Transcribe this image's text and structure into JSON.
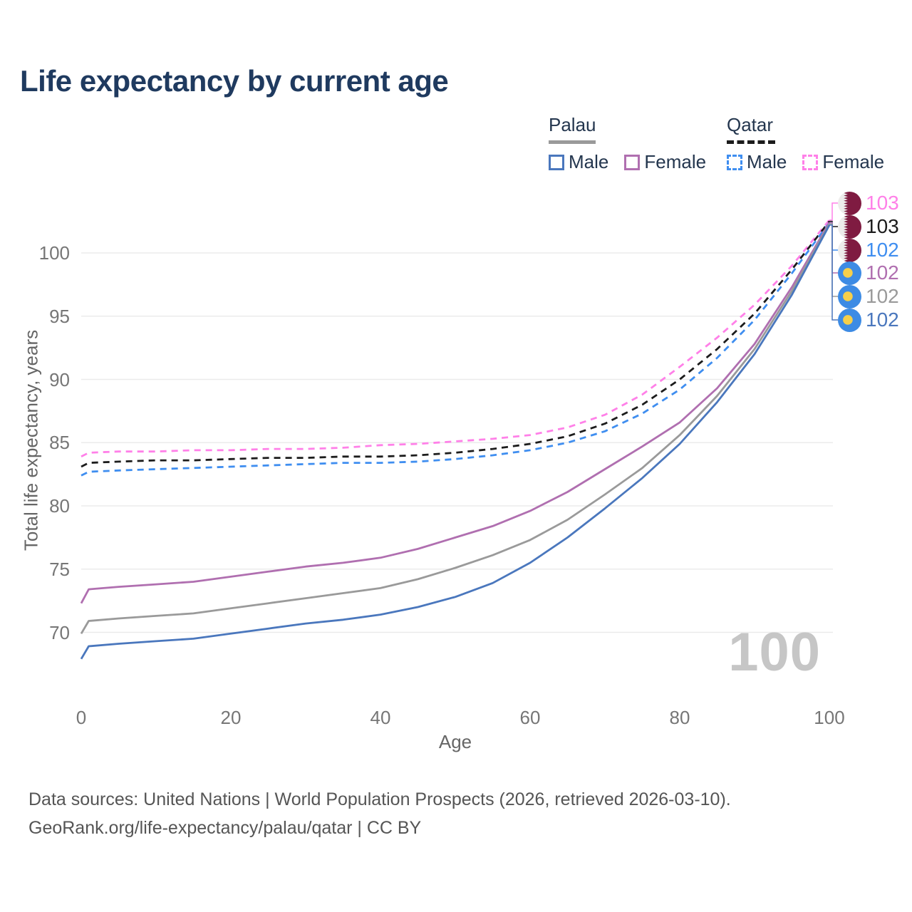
{
  "header": {
    "title": "Life expectancy by current age"
  },
  "legend": {
    "groups": [
      {
        "label": "Palau",
        "line_style": "solid",
        "underline_color": "#9a9a9a",
        "items": [
          {
            "label": "Male",
            "color": "#4a77bd"
          },
          {
            "label": "Female",
            "color": "#b06fb0"
          }
        ]
      },
      {
        "label": "Qatar",
        "line_style": "dashed",
        "underline_color": "#1c1c1c",
        "items": [
          {
            "label": "Male",
            "color": "#3f8ef0"
          },
          {
            "label": "Female",
            "color": "#ff80e8"
          }
        ]
      }
    ]
  },
  "chart_data": {
    "type": "line",
    "title": "Life expectancy by current age",
    "xlabel": "Age",
    "ylabel": "Total life expectancy, years",
    "xlim": [
      0,
      100
    ],
    "ylim": [
      67,
      104
    ],
    "xticks": [
      0,
      20,
      40,
      60,
      80,
      100
    ],
    "yticks": [
      70,
      75,
      80,
      85,
      90,
      95,
      100
    ],
    "grid": "horizontal",
    "legend_position": "top-right",
    "x": [
      0,
      1,
      5,
      10,
      15,
      20,
      25,
      30,
      35,
      40,
      45,
      50,
      55,
      60,
      65,
      70,
      75,
      80,
      85,
      90,
      95,
      100
    ],
    "series": [
      {
        "id": "qatar-female",
        "name": "Qatar Female",
        "country": "Qatar",
        "sex": "Female",
        "color": "#ff80e8",
        "dash": "dashed",
        "flag": "qatar",
        "end_label": "103",
        "values": [
          83.9,
          84.2,
          84.3,
          84.3,
          84.4,
          84.4,
          84.5,
          84.5,
          84.6,
          84.8,
          84.9,
          85.1,
          85.3,
          85.6,
          86.2,
          87.2,
          88.8,
          91.0,
          93.3,
          95.9,
          99.0,
          102.6
        ]
      },
      {
        "id": "qatar-both",
        "name": "Qatar Both sexes",
        "country": "Qatar",
        "sex": "Both",
        "color": "#1c1c1c",
        "dash": "dashed",
        "flag": "qatar",
        "end_label": "103",
        "values": [
          83.1,
          83.4,
          83.5,
          83.6,
          83.6,
          83.7,
          83.8,
          83.8,
          83.9,
          83.9,
          84.0,
          84.2,
          84.5,
          84.9,
          85.5,
          86.5,
          88.0,
          90.0,
          92.4,
          95.2,
          98.7,
          102.5
        ]
      },
      {
        "id": "qatar-male",
        "name": "Qatar Male",
        "country": "Qatar",
        "sex": "Male",
        "color": "#3f8ef0",
        "dash": "dashed",
        "flag": "qatar",
        "end_label": "102",
        "values": [
          82.4,
          82.7,
          82.8,
          82.9,
          83.0,
          83.1,
          83.2,
          83.3,
          83.4,
          83.4,
          83.5,
          83.7,
          84.0,
          84.4,
          85.0,
          85.9,
          87.3,
          89.2,
          91.7,
          94.7,
          98.4,
          102.4
        ]
      },
      {
        "id": "palau-female",
        "name": "Palau Female",
        "country": "Palau",
        "sex": "Female",
        "color": "#b06fb0",
        "dash": "solid",
        "flag": "palau",
        "end_label": "102",
        "values": [
          72.3,
          73.4,
          73.6,
          73.8,
          74.0,
          74.4,
          74.8,
          75.2,
          75.5,
          75.9,
          76.6,
          77.5,
          78.4,
          79.6,
          81.1,
          82.9,
          84.7,
          86.6,
          89.3,
          92.8,
          97.3,
          102.4
        ]
      },
      {
        "id": "palau-both",
        "name": "Palau Both sexes",
        "country": "Palau",
        "sex": "Both",
        "color": "#9a9a9a",
        "dash": "solid",
        "flag": "palau",
        "end_label": "102",
        "values": [
          69.9,
          70.9,
          71.1,
          71.3,
          71.5,
          71.9,
          72.3,
          72.7,
          73.1,
          73.5,
          74.2,
          75.1,
          76.1,
          77.3,
          78.9,
          80.9,
          83.0,
          85.6,
          88.7,
          92.4,
          97.0,
          102.3
        ]
      },
      {
        "id": "palau-male",
        "name": "Palau Male",
        "country": "Palau",
        "sex": "Male",
        "color": "#4a77bd",
        "dash": "solid",
        "flag": "palau",
        "end_label": "102",
        "values": [
          67.9,
          68.9,
          69.1,
          69.3,
          69.5,
          69.9,
          70.3,
          70.7,
          71.0,
          71.4,
          72.0,
          72.8,
          73.9,
          75.5,
          77.5,
          79.8,
          82.2,
          84.9,
          88.2,
          92.0,
          96.7,
          102.2
        ]
      }
    ]
  },
  "annotations": {
    "age_counter": "100"
  },
  "palette": {
    "title_text": "#1f3a5f",
    "axis_text": "#767676",
    "grid_line": "#ebebeb",
    "watermark": "#c6c6c6",
    "footer_text": "#555555",
    "qatar_maroon": "#7f1b41",
    "qatar_white": "#edeceb",
    "palau_blue": "#3d8be4",
    "palau_yellow": "#f6cf4a"
  },
  "footer": {
    "line1": "Data sources: United Nations | World Population Prospects (2026, retrieved 2026-03-10).",
    "line2": "GeoRank.org/life-expectancy/palau/qatar | CC BY"
  }
}
